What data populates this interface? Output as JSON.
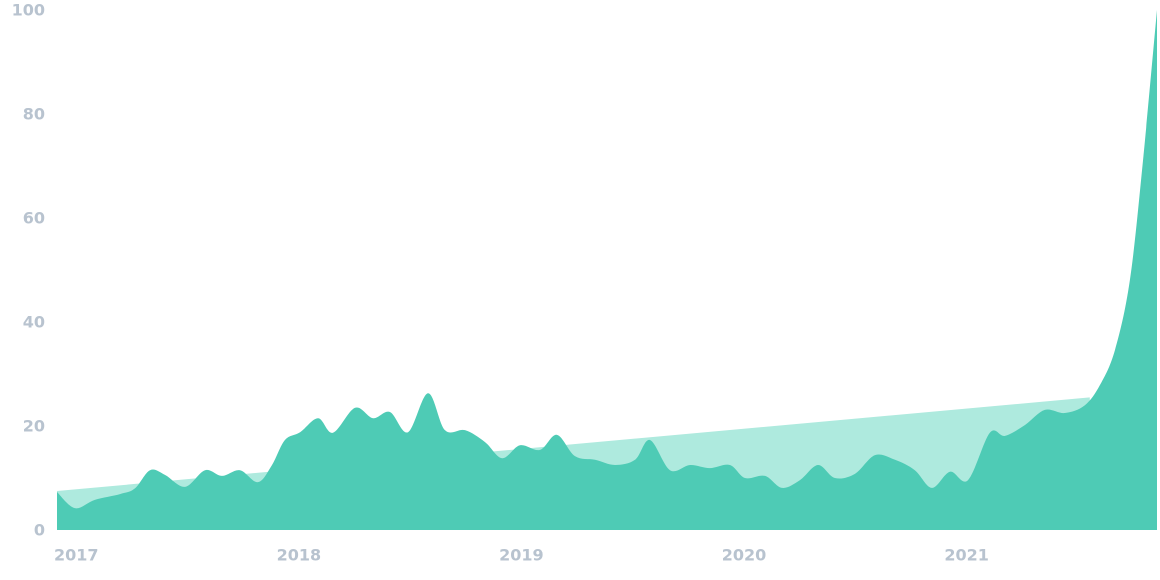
{
  "chart_data": {
    "type": "area",
    "x": [
      2017.0,
      2017.08,
      2017.17,
      2017.283,
      2017.35,
      2017.418,
      2017.485,
      2017.575,
      2017.665,
      2017.741,
      2017.822,
      2017.903,
      2017.966,
      2018.024,
      2018.092,
      2018.173,
      2018.24,
      2018.339,
      2018.42,
      2018.496,
      2018.577,
      2018.667,
      2018.743,
      2018.833,
      2018.923,
      2019.0,
      2019.08,
      2019.17,
      2019.246,
      2019.327,
      2019.417,
      2019.507,
      2019.597,
      2019.664,
      2019.754,
      2019.844,
      2019.933,
      2020.023,
      2020.091,
      2020.181,
      2020.257,
      2020.338,
      2020.419,
      2020.495,
      2020.585,
      2020.675,
      2020.765,
      2020.854,
      2020.931,
      2021.012,
      2021.093,
      2021.191,
      2021.259,
      2021.349,
      2021.438,
      2021.528,
      2021.618,
      2021.686,
      2021.753,
      2021.82,
      2021.879,
      2021.942
    ],
    "series": [
      {
        "color": "#4ecbb5",
        "values": [
          7.3,
          4.2,
          5.8,
          6.9,
          8,
          11.5,
          10.6,
          8.3,
          11.5,
          10.4,
          11.5,
          9.2,
          12.5,
          17.3,
          18.8,
          21.5,
          18.7,
          23.5,
          21.5,
          22.7,
          18.8,
          26.3,
          19.2,
          19.2,
          16.9,
          13.8,
          16.3,
          15.4,
          18.3,
          14.2,
          13.5,
          12.5,
          13.5,
          17.3,
          11.5,
          12.5,
          11.9,
          12.5,
          10,
          10.4,
          8.1,
          9.6,
          12.5,
          10,
          10.8,
          14.4,
          13.5,
          11.5,
          8.1,
          11.2,
          9.6,
          18.7,
          18.1,
          20.2,
          23.1,
          22.5,
          24,
          27.9,
          34.6,
          48,
          71,
          100
        ]
      }
    ],
    "trend": {
      "color": "#aeeade",
      "x": [
        2017.0,
        2021.64
      ],
      "values": [
        7.5,
        25.5
      ]
    },
    "xlim": [
      2017.0,
      2021.942
    ],
    "xticks": [
      2017,
      2018,
      2019,
      2020,
      2021
    ],
    "ylim": [
      0,
      100
    ],
    "yticks": [
      0,
      20,
      40,
      60,
      80,
      100
    ]
  }
}
